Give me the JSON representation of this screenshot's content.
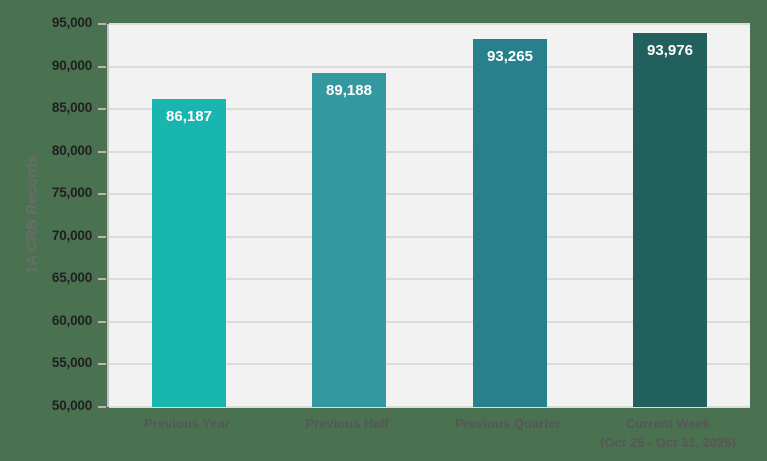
{
  "page": {
    "background_color": "#4a7251"
  },
  "chart_data": {
    "type": "bar",
    "title": "",
    "ylabel": "1A CRB Records",
    "xlabel": "",
    "categories": [
      "Previous Year",
      "Previous Half",
      "Previous Quarter",
      "Current Week (Oct 25 - Oct 31, 2025)"
    ],
    "category_lines": [
      [
        "Previous Year"
      ],
      [
        "Previous Half"
      ],
      [
        "Previous Quarter"
      ],
      [
        "Current Week",
        "(Oct 25 - Oct 31, 2025)"
      ]
    ],
    "values": [
      86187,
      89188,
      93265,
      93976
    ],
    "value_labels": [
      "86,187",
      "89,188",
      "93,265",
      "93,976"
    ],
    "bar_colors": [
      "#18b6ae",
      "#33999e",
      "#28808d",
      "#21605c"
    ],
    "ylim": [
      50000,
      95000
    ],
    "ytick_interval": 5000,
    "ytick_labels": [
      "50,000",
      "55,000",
      "60,000",
      "65,000",
      "70,000",
      "75,000",
      "80,000",
      "85,000",
      "90,000",
      "95,000"
    ],
    "grid": true,
    "legend": false,
    "colors": {
      "plot_background": "#f2f2f2",
      "gridline": "#dcdcdc",
      "axis_line": "#c3c3c3",
      "tick_mark": "#b5b5b5",
      "ytick_label": "#1f1f1f",
      "xtick_label": "#575757",
      "ylabel": "#6b6b6b",
      "bar_label": "#ffffff"
    }
  }
}
